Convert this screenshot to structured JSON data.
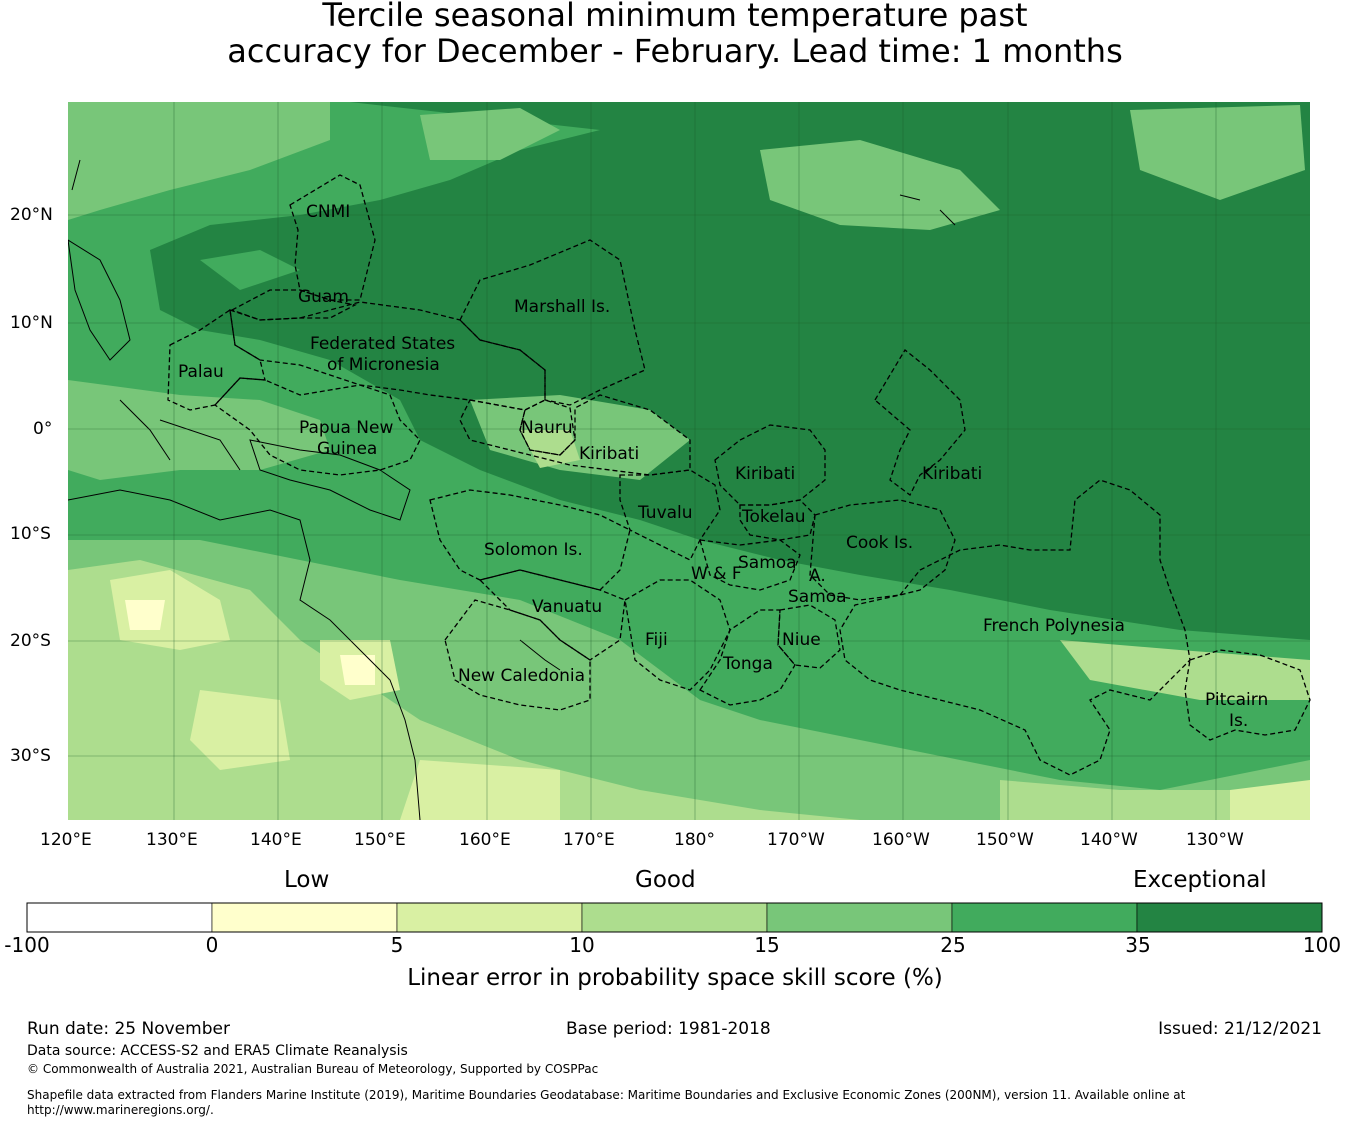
{
  "title": {
    "line1": "Tercile seasonal minimum temperature past",
    "line2": "accuracy for December - February. Lead time: 1 months"
  },
  "axes": {
    "lat_ticks": [
      "20°N",
      "10°N",
      "0°",
      "10°S",
      "20°S",
      "30°S"
    ],
    "lon_ticks": [
      "120°E",
      "130°E",
      "140°E",
      "150°E",
      "160°E",
      "170°E",
      "180°",
      "170°W",
      "160°W",
      "150°W",
      "140°W",
      "130°W"
    ]
  },
  "regions": [
    {
      "line1": "CNMI"
    },
    {
      "line1": "Guam"
    },
    {
      "line1": "Marshall Is."
    },
    {
      "line1": "Federated States",
      "line2": "of Micronesia"
    },
    {
      "line1": "Palau"
    },
    {
      "line1": "Papua New",
      "line2": "Guinea"
    },
    {
      "line1": "Nauru"
    },
    {
      "line1": "Kiribati"
    },
    {
      "line1": "Kiribati"
    },
    {
      "line1": "Kiribati"
    },
    {
      "line1": "Tuvalu"
    },
    {
      "line1": "Tokelau"
    },
    {
      "line1": "Solomon Is."
    },
    {
      "line1": "Samoa"
    },
    {
      "line1": "W & F"
    },
    {
      "line1": "A."
    },
    {
      "line1": "Samoa"
    },
    {
      "line1": "Cook Is."
    },
    {
      "line1": "Vanuatu"
    },
    {
      "line1": "Fiji"
    },
    {
      "line1": "Niue"
    },
    {
      "line1": "Tonga"
    },
    {
      "line1": "French Polynesia"
    },
    {
      "line1": "New Caledonia"
    },
    {
      "line1": "Pitcairn",
      "line2": "Is."
    }
  ],
  "colorbar": {
    "category_labels": [
      "Low",
      "Good",
      "Exceptional"
    ],
    "bins": [
      {
        "from": -100,
        "to": 0,
        "color": "#ffffff"
      },
      {
        "from": 0,
        "to": 5,
        "color": "#ffffcc"
      },
      {
        "from": 5,
        "to": 10,
        "color": "#d9f0a3"
      },
      {
        "from": 10,
        "to": 15,
        "color": "#addd8e"
      },
      {
        "from": 15,
        "to": 25,
        "color": "#78c679"
      },
      {
        "from": 25,
        "to": 35,
        "color": "#41ab5d"
      },
      {
        "from": 35,
        "to": 100,
        "color": "#238443"
      }
    ],
    "tick_labels": [
      "-100",
      "0",
      "5",
      "10",
      "15",
      "25",
      "35",
      "100"
    ],
    "label": "Linear error in probability space skill score (%)"
  },
  "footer": {
    "run_date": "Run date: 25 November",
    "base_period": "Base period: 1981-2018",
    "issued": "Issued: 21/12/2021",
    "data_source": "Data source: ACCESS-S2 and ERA5 Climate Reanalysis",
    "copyright": "© Commonwealth of Australia 2021, Australian Bureau of Meteorology, Supported by COSPPac",
    "shapefile_line1": "Shapefile data extracted from Flanders Marine Institute (2019), Maritime Boundaries Geodatabase: Maritime Boundaries and Exclusive Economic Zones (200NM), version 11. Available online at",
    "shapefile_line2": "http://www.marineregions.org/."
  }
}
